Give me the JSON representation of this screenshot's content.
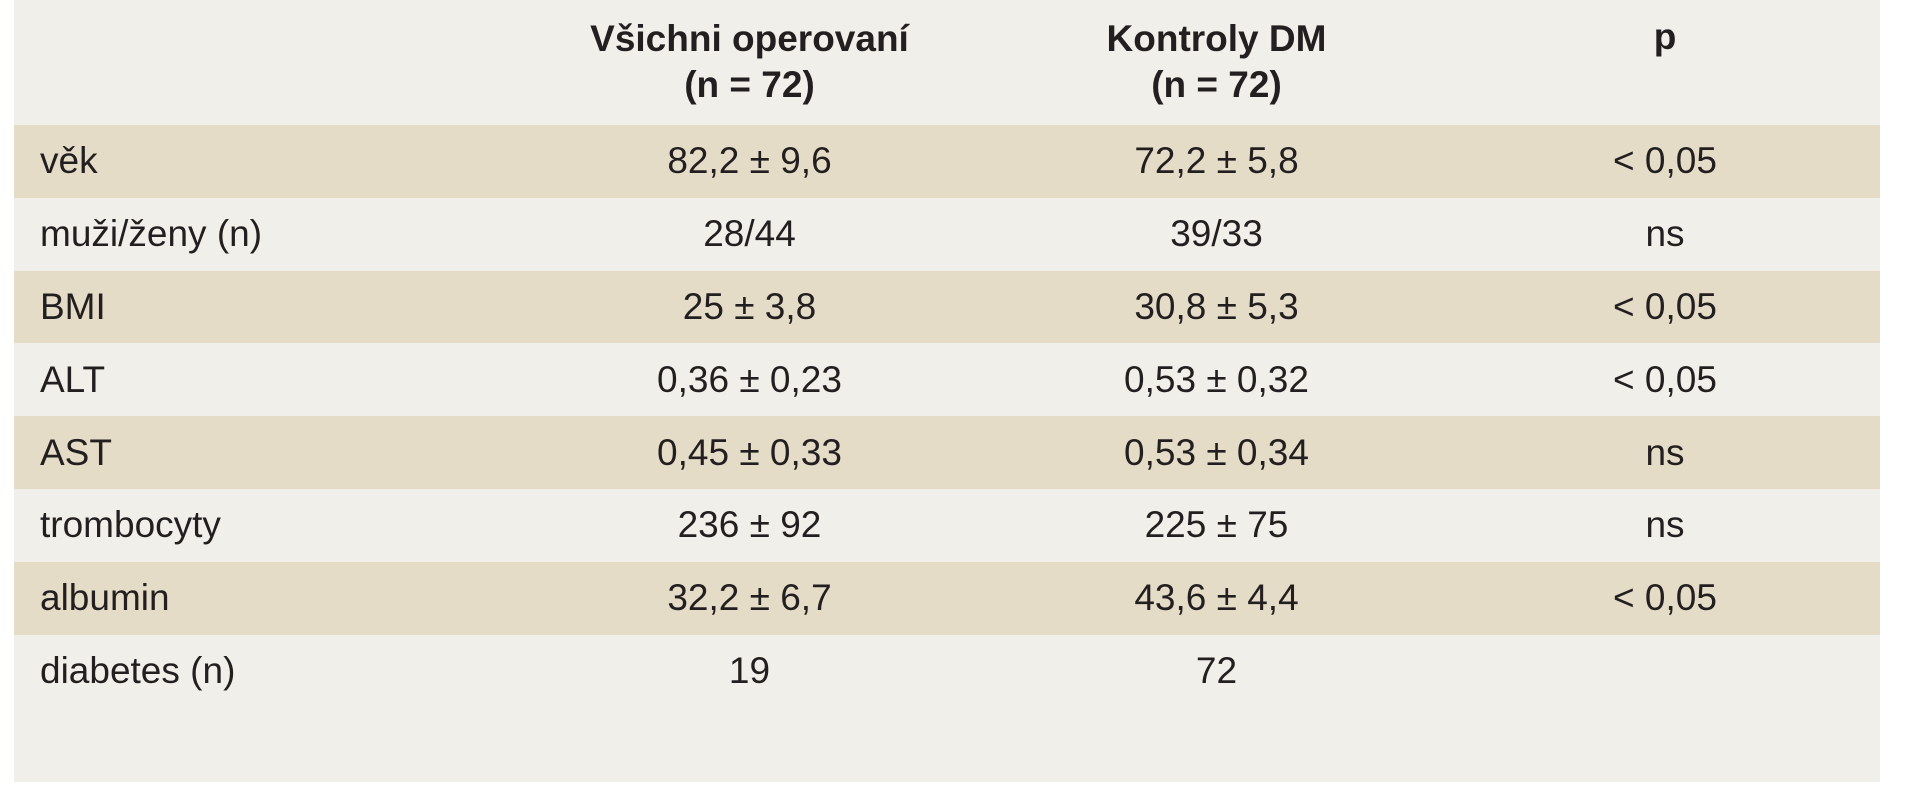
{
  "table": {
    "header": {
      "label": "",
      "col_operated": [
        "Všichni operovaní",
        "(n = 72)"
      ],
      "col_controls": [
        "Kontroly DM",
        "(n = 72)"
      ],
      "col_p": "p"
    },
    "rows": [
      {
        "label": "věk",
        "operated": "82,2 ± 9,6",
        "controls": "72,2 ± 5,8",
        "p": "< 0,05",
        "shaded": true
      },
      {
        "label": "muži/ženy (n)",
        "operated": "28/44",
        "controls": "39/33",
        "p": "ns",
        "shaded": false
      },
      {
        "label": "BMI",
        "operated": "25 ± 3,8",
        "controls": "30,8 ± 5,3",
        "p": "< 0,05",
        "shaded": true
      },
      {
        "label": "ALT",
        "operated": "0,36 ± 0,23",
        "controls": "0,53 ± 0,32",
        "p": "< 0,05",
        "shaded": false
      },
      {
        "label": "AST",
        "operated": "0,45 ± 0,33",
        "controls": "0,53 ± 0,34",
        "p": "ns",
        "shaded": true
      },
      {
        "label": "trombocyty",
        "operated": "236 ± 92",
        "controls": "225 ± 75",
        "p": "ns",
        "shaded": false
      },
      {
        "label": "albumin",
        "operated": "32,2 ± 6,7",
        "controls": "43,6 ± 4,4",
        "p": "< 0,05",
        "shaded": true
      },
      {
        "label": "diabetes (n)",
        "operated": "19",
        "controls": "72",
        "p": "",
        "shaded": false
      }
    ],
    "colors": {
      "background": "#f1efe9",
      "shaded_row": "#e5dcc7",
      "text": "#231f20"
    }
  }
}
